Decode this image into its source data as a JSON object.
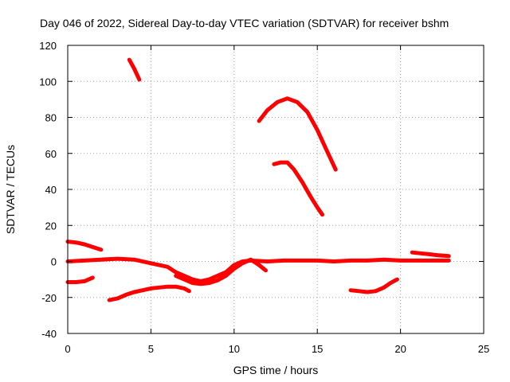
{
  "chart_data": {
    "type": "line",
    "title": "Day 046 of 2022, Sidereal Day-to-day VTEC variation (SDTVAR) for receiver bshm",
    "xlabel": "GPS time / hours",
    "ylabel": "SDTVAR / TECUs",
    "xlim": [
      0,
      25
    ],
    "ylim": [
      -40,
      120
    ],
    "xticks": [
      0,
      5,
      10,
      15,
      20,
      25
    ],
    "yticks": [
      -40,
      -20,
      0,
      20,
      40,
      60,
      80,
      100,
      120
    ],
    "grid": true,
    "series_color": "#ff0000",
    "series": [
      {
        "name": "arc-1",
        "points": [
          [
            3.7,
            112
          ],
          [
            4.0,
            107
          ],
          [
            4.3,
            101
          ]
        ]
      },
      {
        "name": "arc-2",
        "points": [
          [
            11.5,
            78
          ],
          [
            12.0,
            84
          ],
          [
            12.6,
            88.5
          ],
          [
            13.2,
            90.5
          ],
          [
            13.8,
            88.5
          ],
          [
            14.4,
            83
          ],
          [
            15.0,
            73
          ],
          [
            15.5,
            63
          ],
          [
            16.1,
            51
          ]
        ]
      },
      {
        "name": "arc-3",
        "points": [
          [
            12.4,
            54
          ],
          [
            12.8,
            55
          ],
          [
            13.2,
            55
          ],
          [
            13.6,
            51
          ],
          [
            14.1,
            44
          ],
          [
            14.6,
            36
          ],
          [
            15.0,
            30
          ],
          [
            15.3,
            26
          ]
        ]
      },
      {
        "name": "arc-4",
        "points": [
          [
            0.0,
            11
          ],
          [
            0.5,
            10.5
          ],
          [
            1.0,
            9.5
          ],
          [
            1.5,
            8
          ],
          [
            2.0,
            6.5
          ]
        ]
      },
      {
        "name": "arc-5",
        "points": [
          [
            0.0,
            0
          ],
          [
            1.0,
            0.5
          ],
          [
            2.0,
            1
          ],
          [
            3.0,
            1.5
          ],
          [
            4.0,
            1
          ],
          [
            5.0,
            -1
          ],
          [
            6.0,
            -3
          ],
          [
            6.5,
            -6
          ],
          [
            7.0,
            -8
          ],
          [
            7.5,
            -10
          ],
          [
            8.0,
            -11
          ],
          [
            8.5,
            -10
          ],
          [
            9.0,
            -8
          ],
          [
            9.5,
            -6
          ],
          [
            10.0,
            -2
          ],
          [
            10.5,
            0
          ],
          [
            11.0,
            0.5
          ],
          [
            12.0,
            0
          ],
          [
            13.0,
            0.5
          ],
          [
            14.0,
            0.5
          ],
          [
            15.0,
            0.5
          ],
          [
            16.0,
            0
          ],
          [
            17.0,
            0.5
          ],
          [
            18.0,
            0.5
          ],
          [
            19.0,
            1
          ],
          [
            20.0,
            0.5
          ],
          [
            21.0,
            0.5
          ],
          [
            22.0,
            0.5
          ],
          [
            22.9,
            0.5
          ]
        ]
      },
      {
        "name": "arc-6",
        "points": [
          [
            6.5,
            -8
          ],
          [
            7.0,
            -10
          ],
          [
            7.5,
            -12
          ],
          [
            8.0,
            -12.5
          ],
          [
            8.5,
            -12
          ],
          [
            9.0,
            -10.5
          ],
          [
            9.5,
            -8
          ],
          [
            10.0,
            -4
          ],
          [
            10.5,
            -1
          ],
          [
            11.0,
            1
          ],
          [
            11.5,
            -2
          ],
          [
            11.9,
            -5
          ]
        ]
      },
      {
        "name": "arc-7",
        "points": [
          [
            0.0,
            -11.5
          ],
          [
            0.5,
            -11.5
          ],
          [
            1.0,
            -11
          ],
          [
            1.5,
            -9
          ]
        ]
      },
      {
        "name": "arc-8",
        "points": [
          [
            2.5,
            -21.5
          ],
          [
            3.0,
            -20.5
          ],
          [
            3.5,
            -18.5
          ],
          [
            4.0,
            -17
          ],
          [
            4.5,
            -16
          ],
          [
            5.0,
            -15
          ],
          [
            5.5,
            -14.5
          ],
          [
            6.0,
            -14
          ],
          [
            6.5,
            -14
          ],
          [
            7.0,
            -15
          ],
          [
            7.3,
            -16.5
          ]
        ]
      },
      {
        "name": "arc-9",
        "points": [
          [
            17.0,
            -16
          ],
          [
            17.5,
            -16.5
          ],
          [
            18.0,
            -17
          ],
          [
            18.5,
            -16.5
          ],
          [
            19.0,
            -14.5
          ],
          [
            19.4,
            -12
          ],
          [
            19.8,
            -10
          ]
        ]
      },
      {
        "name": "arc-10",
        "points": [
          [
            20.7,
            5
          ],
          [
            21.2,
            4.5
          ],
          [
            21.7,
            4
          ],
          [
            22.2,
            3.5
          ],
          [
            22.9,
            3
          ]
        ]
      }
    ]
  }
}
